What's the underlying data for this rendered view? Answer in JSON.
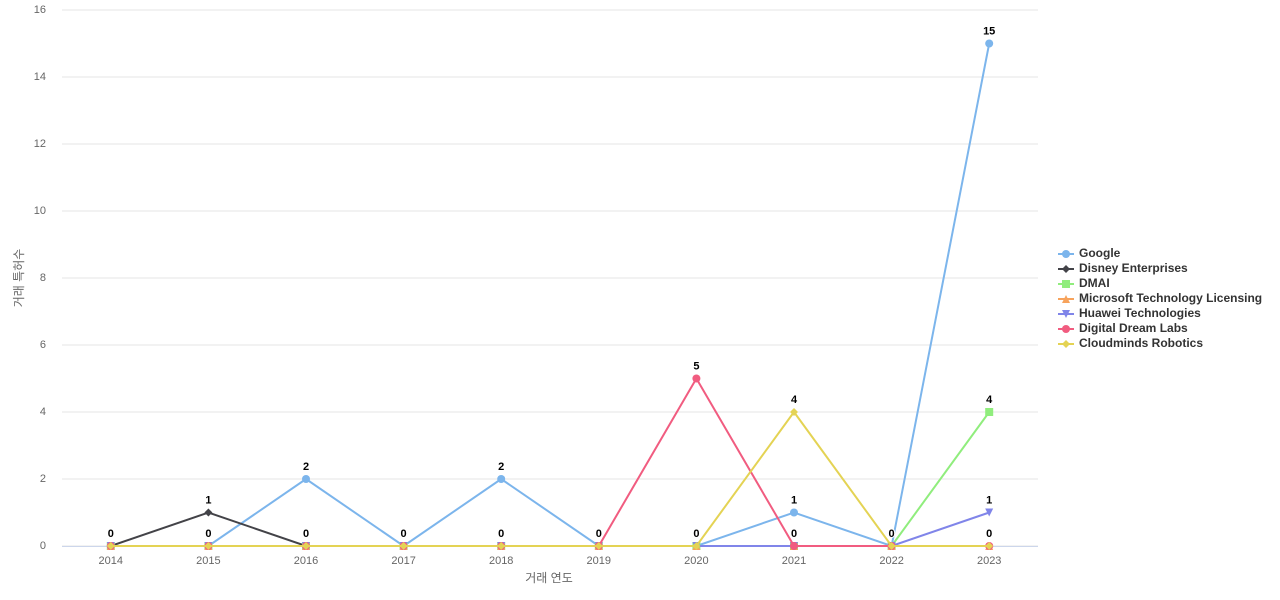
{
  "chart_data": {
    "type": "line",
    "x_label": "거래 연도",
    "y_label": "거래 특허수",
    "categories": [
      "2014",
      "2015",
      "2016",
      "2017",
      "2018",
      "2019",
      "2020",
      "2021",
      "2022",
      "2023"
    ],
    "series": [
      {
        "name": "Google",
        "color": "#7cb5ec",
        "marker": "circle",
        "values": [
          0,
          0,
          2,
          0,
          2,
          0,
          0,
          1,
          0,
          15
        ]
      },
      {
        "name": "Disney Enterprises",
        "color": "#434348",
        "marker": "diamond",
        "values": [
          0,
          1,
          0,
          0,
          0,
          0,
          0,
          0,
          0,
          0
        ]
      },
      {
        "name": "DMAI",
        "color": "#90ed7d",
        "marker": "square",
        "values": [
          0,
          0,
          0,
          0,
          0,
          0,
          0,
          0,
          0,
          4
        ]
      },
      {
        "name": "Microsoft Technology Licensing",
        "color": "#f7a35c",
        "marker": "triangle",
        "values": [
          0,
          0,
          0,
          0,
          0,
          0,
          0,
          0,
          0,
          0
        ]
      },
      {
        "name": "Huawei Technologies",
        "color": "#8085e9",
        "marker": "triangle-down",
        "values": [
          0,
          0,
          0,
          0,
          0,
          0,
          0,
          0,
          0,
          1
        ]
      },
      {
        "name": "Digital Dream Labs",
        "color": "#f15c80",
        "marker": "circle",
        "values": [
          0,
          0,
          0,
          0,
          0,
          0,
          5,
          0,
          0,
          0
        ]
      },
      {
        "name": "Cloudminds Robotics",
        "color": "#e4d354",
        "marker": "diamond",
        "values": [
          0,
          0,
          0,
          0,
          0,
          0,
          0,
          4,
          0,
          0
        ]
      }
    ],
    "ylim": [
      0,
      16
    ],
    "yticks": [
      0,
      2,
      4,
      6,
      8,
      10,
      12,
      14,
      16
    ],
    "grid": true,
    "legend": "right"
  }
}
